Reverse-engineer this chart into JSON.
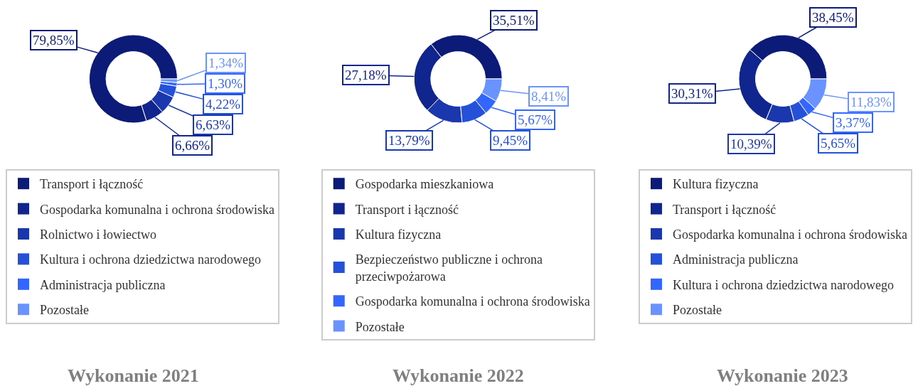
{
  "chart_data": [
    {
      "type": "donut",
      "title": "Wykonanie 2021",
      "categories": [
        "Transport i łączność",
        "Gospodarka komunalna i ochrona środowiska",
        "Rolnictwo i łowiectwo",
        "Kultura i ochrona dziedzictwa narodowego",
        "Administracja publiczna",
        "Pozostałe"
      ],
      "values": [
        79.85,
        6.66,
        6.63,
        4.22,
        1.3,
        1.34
      ],
      "colors": [
        "#0c1a78",
        "#11258e",
        "#1a37ae",
        "#2550d8",
        "#3366ff",
        "#6b93ff"
      ],
      "value_labels": [
        "79,85%",
        "6,66%",
        "6,63%",
        "4,22%",
        "1,30%",
        "1,34%"
      ],
      "legend": "bottom"
    },
    {
      "type": "donut",
      "title": "Wykonanie 2022",
      "categories": [
        "Gospodarka mieszkaniowa",
        "Transport i łączność",
        "Kultura fizyczna",
        "Bezpieczeństwo publiczne i ochrona przeciwpożarowa",
        "Gospodarka komunalna i ochrona środowiska",
        "Pozostałe"
      ],
      "values": [
        35.51,
        27.18,
        13.79,
        9.45,
        5.67,
        8.41
      ],
      "colors": [
        "#0c1a78",
        "#11258e",
        "#1a37ae",
        "#2550d8",
        "#3366ff",
        "#6b93ff"
      ],
      "value_labels": [
        "35,51%",
        "27,18%",
        "13,79%",
        "9,45%",
        "5,67%",
        "8,41%"
      ],
      "legend": "bottom"
    },
    {
      "type": "donut",
      "title": "Wykonanie 2023",
      "categories": [
        "Kultura fizyczna",
        "Transport i łączność",
        "Gospodarka komunalna i ochrona środowiska",
        "Administracja publiczna",
        "Kultura i ochrona dziedzictwa narodowego",
        "Pozostałe"
      ],
      "values": [
        38.45,
        30.31,
        10.39,
        5.65,
        3.37,
        11.83
      ],
      "colors": [
        "#0c1a78",
        "#11258e",
        "#1a37ae",
        "#2550d8",
        "#3366ff",
        "#6b93ff"
      ],
      "value_labels": [
        "38,45%",
        "30,31%",
        "10,39%",
        "5,65%",
        "3,37%",
        "11,83%"
      ],
      "legend": "bottom"
    }
  ]
}
